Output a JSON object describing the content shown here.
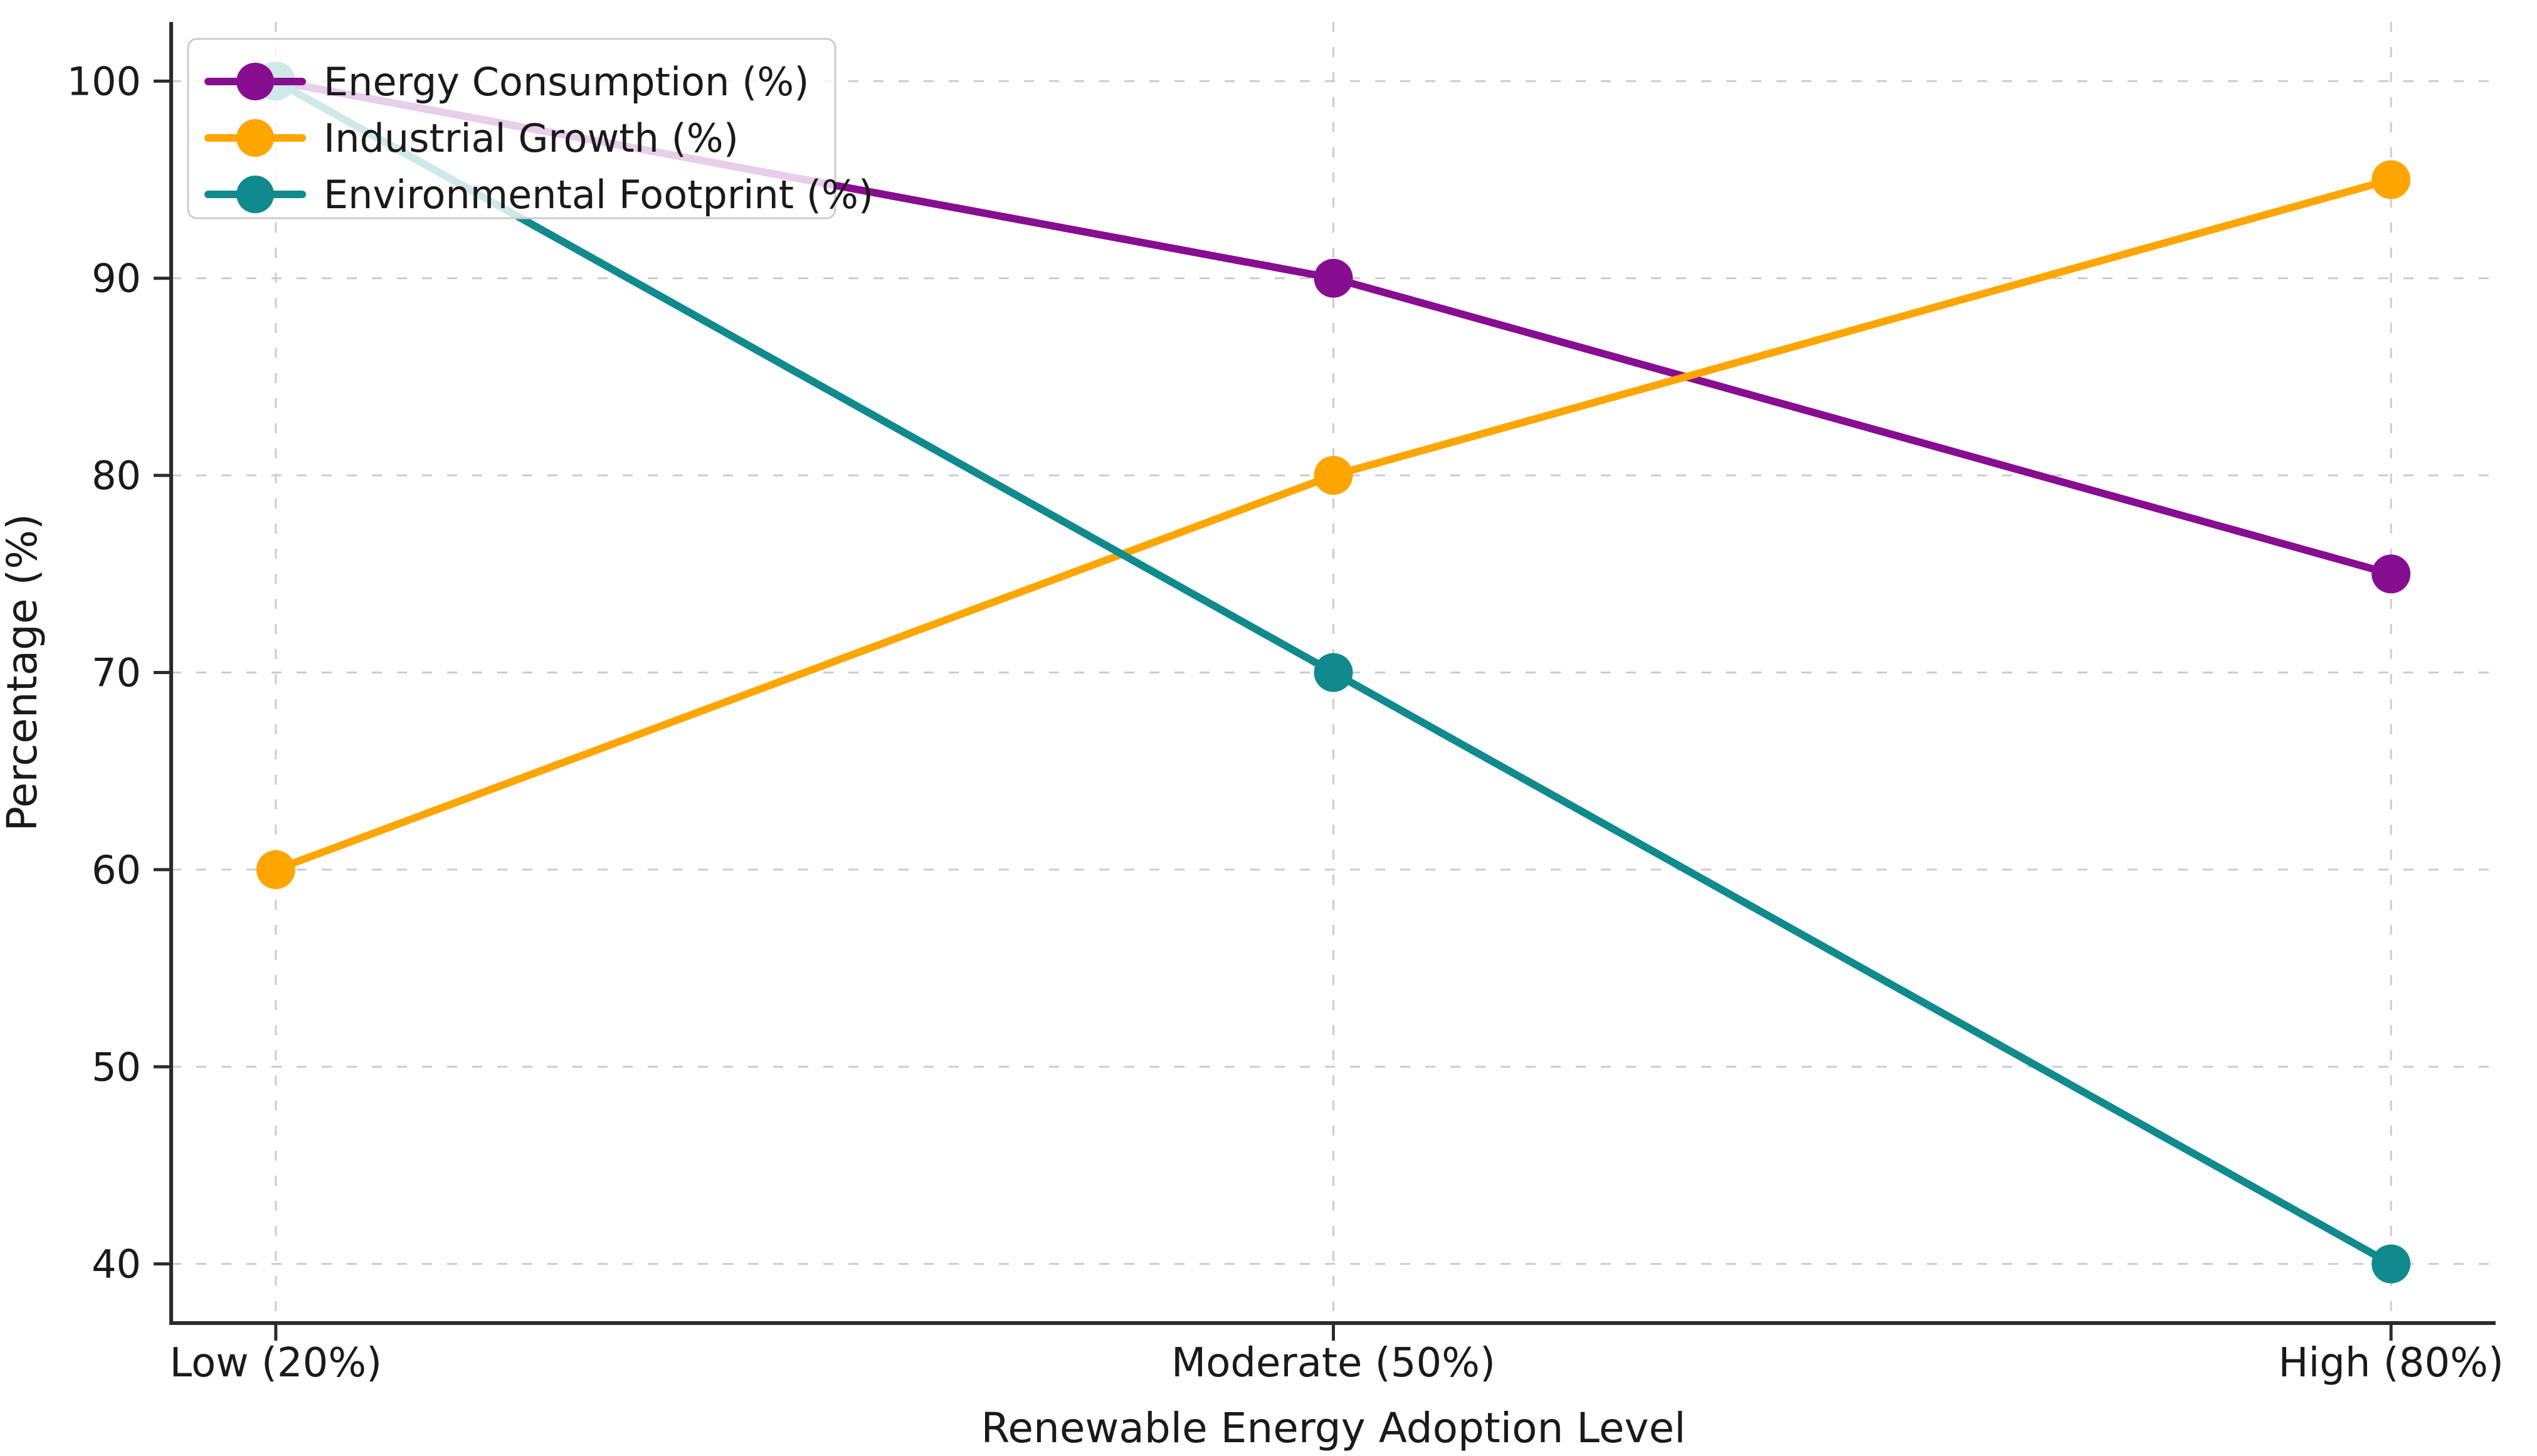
{
  "chart_data": {
    "type": "line",
    "title": "",
    "categories": [
      "Low (20%)",
      "Moderate (50%)",
      "High (80%)"
    ],
    "series": [
      {
        "name": "Energy Consumption (%)",
        "color": "#870E90",
        "values": [
          100,
          90,
          75
        ]
      },
      {
        "name": "Industrial Growth (%)",
        "color": "#FFA500",
        "values": [
          60,
          80,
          95
        ]
      },
      {
        "name": "Environmental Footprint (%)",
        "color": "#108A8C",
        "values": [
          100,
          70,
          40
        ]
      }
    ],
    "xlabel": "Renewable Energy Adoption Level",
    "ylabel": "Percentage (%)",
    "yticks": [
      40,
      50,
      60,
      70,
      80,
      90,
      100
    ],
    "ylim": [
      37,
      103
    ],
    "grid": true,
    "grid_style": "dashed",
    "legend_position": "upper-left",
    "style": {
      "grid_color": "#cccccc",
      "spine_color": "#2b2b2b",
      "tick_color": "#2b2b2b",
      "text_color": "#1a1a1a",
      "legend_border_color": "#cccccc",
      "legend_background": "rgba(255,255,255,0.8)",
      "plot_background": "#ffffff"
    }
  }
}
